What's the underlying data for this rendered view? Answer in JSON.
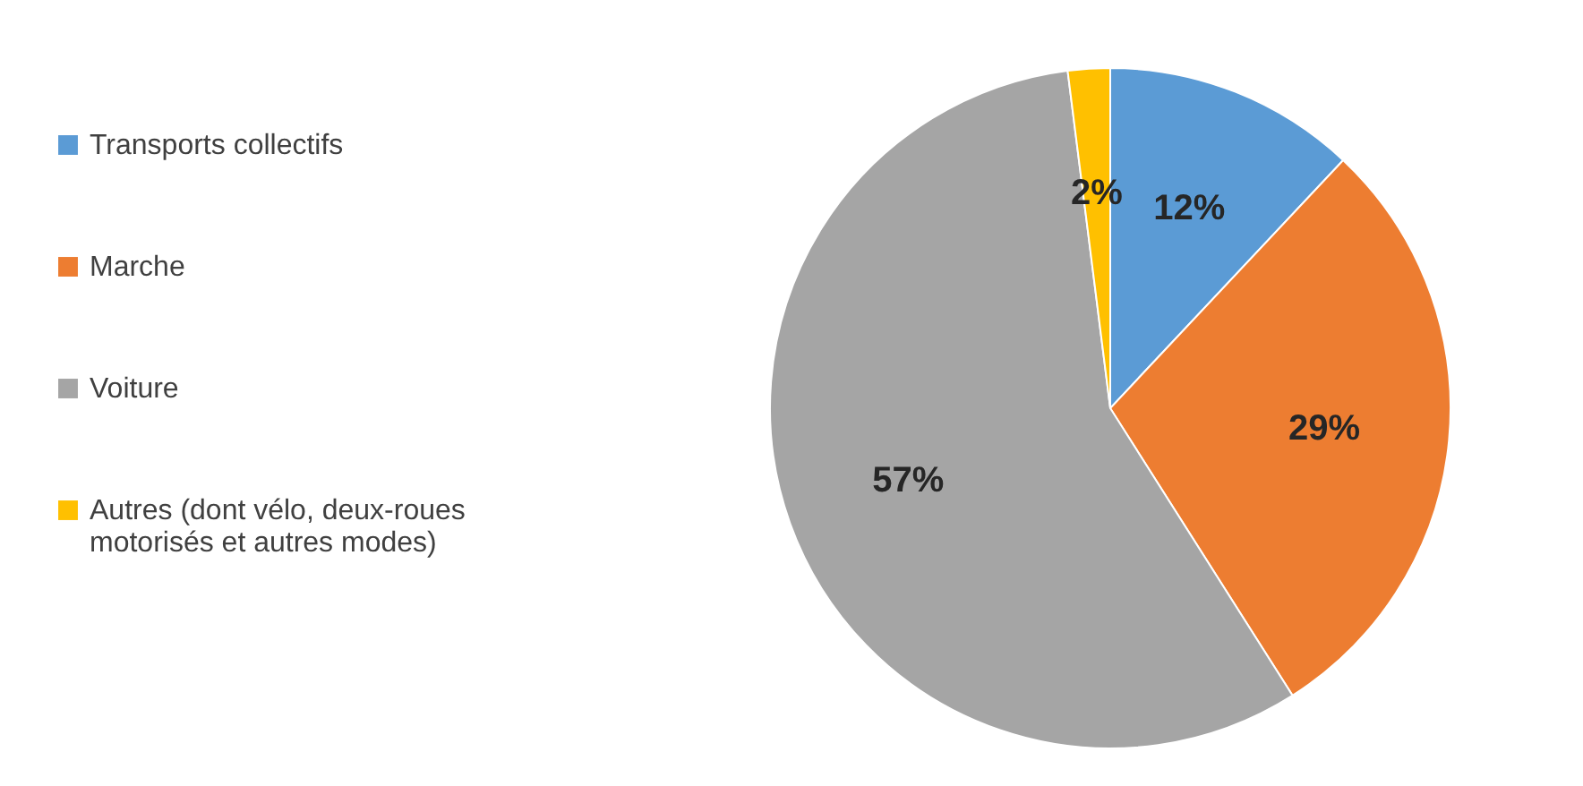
{
  "chart_data": {
    "type": "pie",
    "categories": [
      "Transports collectifs",
      "Marche",
      "Voiture",
      "Autres (dont vélo, deux-roues motorisés et autres modes)"
    ],
    "values": [
      12,
      29,
      57,
      2
    ],
    "colors": [
      "#5b9bd5",
      "#ed7d31",
      "#a5a5a5",
      "#ffc000"
    ],
    "value_labels": [
      "12%",
      "29%",
      "57%",
      "2%"
    ],
    "legend": "left"
  }
}
